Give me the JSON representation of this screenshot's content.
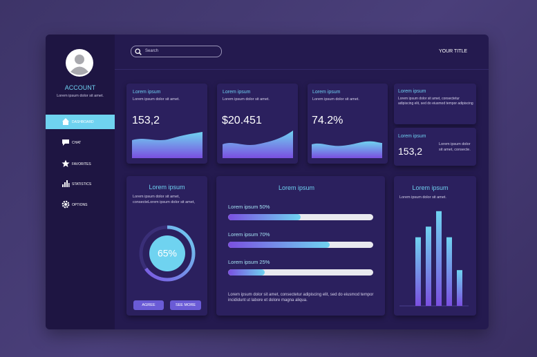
{
  "sidebar": {
    "account": "ACCOUNT",
    "subtitle": "Lorem ipsum dolor sit amet.",
    "nav": [
      "DASHBOARD",
      "CHAT",
      "FAVORITES",
      "STATISTICS",
      "OPTIONS"
    ]
  },
  "header": {
    "search": "Search",
    "title": "YOUR TITLE"
  },
  "stat_cards": [
    {
      "title": "Lorem ipsum",
      "text": "Lorem ipsum dolor sit amet.",
      "value": "153,2"
    },
    {
      "title": "Lorem ipsum",
      "text": "Lorem ipsum dolor sit amet.",
      "value": "$20.451"
    },
    {
      "title": "Lorem ipsum",
      "text": "Lorem ipsum dolor sit amet.",
      "value": "74.2%"
    }
  ],
  "info_card": {
    "title": "Lorem ipsum",
    "text": "Lorem ipsum dolor sit amet, consectetur adipiscing elit, sed do eiusmod tempor adipiscing"
  },
  "small_card": {
    "title": "Lorem ipsum",
    "value": "153,2",
    "text": "Lorem ipsum dolor sit amet, consecte."
  },
  "donut_card": {
    "title": "Lorem ipsum",
    "text": "Lorem ipsum dolor sit amet, consecteLorem ipsum dolor sit amet,",
    "value": 65,
    "value_label": "65%",
    "buttons": [
      "AGREE",
      "SEE MORE"
    ]
  },
  "progress_card": {
    "title": "Lorem ipsum",
    "items": [
      {
        "label": "Lorem ipsum 50%",
        "value": 50
      },
      {
        "label": "Lorem ipsum 70%",
        "value": 70
      },
      {
        "label": "Lorem ipsum 25%",
        "value": 25
      }
    ],
    "text": "Lorem ipsum dolor sit amet, consectetur adipiscing elit, sed do eiusmod tempor incididunt ut labore et dolore magna aliqua."
  },
  "bar_card": {
    "title": "Lorem ipsum",
    "text": "Lorem ipsum dolor sit amet.",
    "values": [
      71,
      82,
      98,
      71,
      37
    ],
    "ylim": [
      0,
      100
    ]
  }
}
